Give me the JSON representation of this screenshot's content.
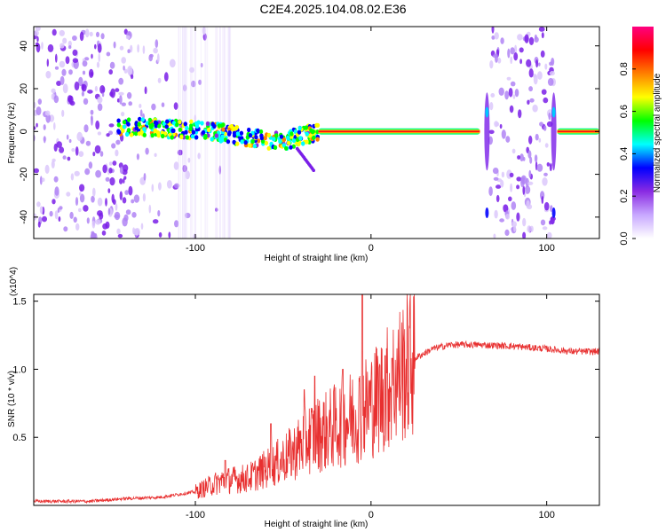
{
  "title": "C2E4.2025.104.08.02.E36",
  "chart_data": [
    {
      "type": "heatmap",
      "xlabel": "Height of straight line (km)",
      "ylabel": "Frequency (Hz)",
      "xlim": [
        -192,
        130
      ],
      "ylim": [
        -50,
        49
      ],
      "xticks": [
        -100,
        0,
        100
      ],
      "xtick_labels": [
        "-100",
        "0",
        "100"
      ],
      "yticks": [
        -40,
        -20,
        0,
        20,
        40
      ],
      "ytick_labels": [
        "-40",
        "-20",
        "0",
        "20",
        "40"
      ],
      "colorbar": {
        "label": "Normalized spectral amplitude",
        "range": [
          0,
          1
        ],
        "ticks": [
          0.0,
          0.2,
          0.4,
          0.6,
          0.8
        ],
        "tick_labels": [
          "0.0",
          "0.2",
          "0.4",
          "0.6",
          "0.8"
        ],
        "colors": [
          "#ffffff",
          "#c8a8ff",
          "#8a2be2",
          "#0000ff",
          "#00ffff",
          "#00ff00",
          "#ffff00",
          "#ff8000",
          "#ff0000",
          "#ff0080"
        ]
      },
      "features": {
        "carrier_path": [
          {
            "x": -144,
            "y": 2
          },
          {
            "x": -130,
            "y": 2
          },
          {
            "x": -110,
            "y": 1
          },
          {
            "x": -90,
            "y": 0
          },
          {
            "x": -75,
            "y": -2
          },
          {
            "x": -60,
            "y": -4
          },
          {
            "x": -50,
            "y": -5
          },
          {
            "x": -40,
            "y": -2
          },
          {
            "x": -30,
            "y": 0
          },
          {
            "x": -15,
            "y": 1
          },
          {
            "x": 0,
            "y": 0
          },
          {
            "x": 30,
            "y": 0
          },
          {
            "x": 60,
            "y": 0
          },
          {
            "x": 63,
            "y": -2
          },
          {
            "x": 110,
            "y": 0
          },
          {
            "x": 130,
            "y": 0
          }
        ],
        "noise_bands": [
          {
            "x0": -192,
            "x1": -136,
            "density": 1.0
          },
          {
            "x0": -136,
            "x1": -120,
            "density": 0.5
          },
          {
            "x0": -120,
            "x1": -100,
            "density": 0.25
          },
          {
            "x0": -100,
            "x1": -84,
            "density": 0.1
          },
          {
            "x0": 68,
            "x1": 104,
            "density": 1.0
          }
        ],
        "band_edges": [
          66,
          104
        ]
      }
    },
    {
      "type": "line",
      "xlabel": "Height of straight line (km)",
      "ylabel": "SNR (10 * v/v)",
      "y_multiplier": "(x10^4)",
      "xlim": [
        -192,
        130
      ],
      "ylim": [
        0,
        1.55
      ],
      "xticks": [
        -100,
        0,
        100
      ],
      "xtick_labels": [
        "-100",
        "0",
        "100"
      ],
      "yticks": [
        0.5,
        1.0,
        1.5
      ],
      "ytick_labels": [
        "0.5",
        "1.0",
        "1.5"
      ],
      "series": [
        {
          "color": "#e83030",
          "envelope": [
            {
              "x": -192,
              "y": 0.03
            },
            {
              "x": -160,
              "y": 0.03
            },
            {
              "x": -140,
              "y": 0.05
            },
            {
              "x": -120,
              "y": 0.06
            },
            {
              "x": -100,
              "y": 0.1
            },
            {
              "x": -85,
              "y": 0.18
            },
            {
              "x": -70,
              "y": 0.2
            },
            {
              "x": -55,
              "y": 0.3
            },
            {
              "x": -45,
              "y": 0.38
            },
            {
              "x": -35,
              "y": 0.5
            },
            {
              "x": -25,
              "y": 0.55
            },
            {
              "x": -15,
              "y": 0.62
            },
            {
              "x": -5,
              "y": 0.7
            },
            {
              "x": 5,
              "y": 0.8
            },
            {
              "x": 15,
              "y": 0.95
            },
            {
              "x": 25,
              "y": 1.08
            },
            {
              "x": 35,
              "y": 1.15
            },
            {
              "x": 45,
              "y": 1.18
            },
            {
              "x": 60,
              "y": 1.18
            },
            {
              "x": 80,
              "y": 1.17
            },
            {
              "x": 100,
              "y": 1.15
            },
            {
              "x": 115,
              "y": 1.13
            },
            {
              "x": 130,
              "y": 1.13
            }
          ],
          "peaks": [
            {
              "x": -83,
              "y": 0.33
            },
            {
              "x": -57,
              "y": 0.6
            },
            {
              "x": -38,
              "y": 0.85
            },
            {
              "x": -32,
              "y": 0.95
            },
            {
              "x": -16,
              "y": 1.0
            },
            {
              "x": -5,
              "y": 1.55
            },
            {
              "x": 8,
              "y": 1.1
            },
            {
              "x": 12,
              "y": 1.08
            }
          ]
        }
      ]
    }
  ]
}
